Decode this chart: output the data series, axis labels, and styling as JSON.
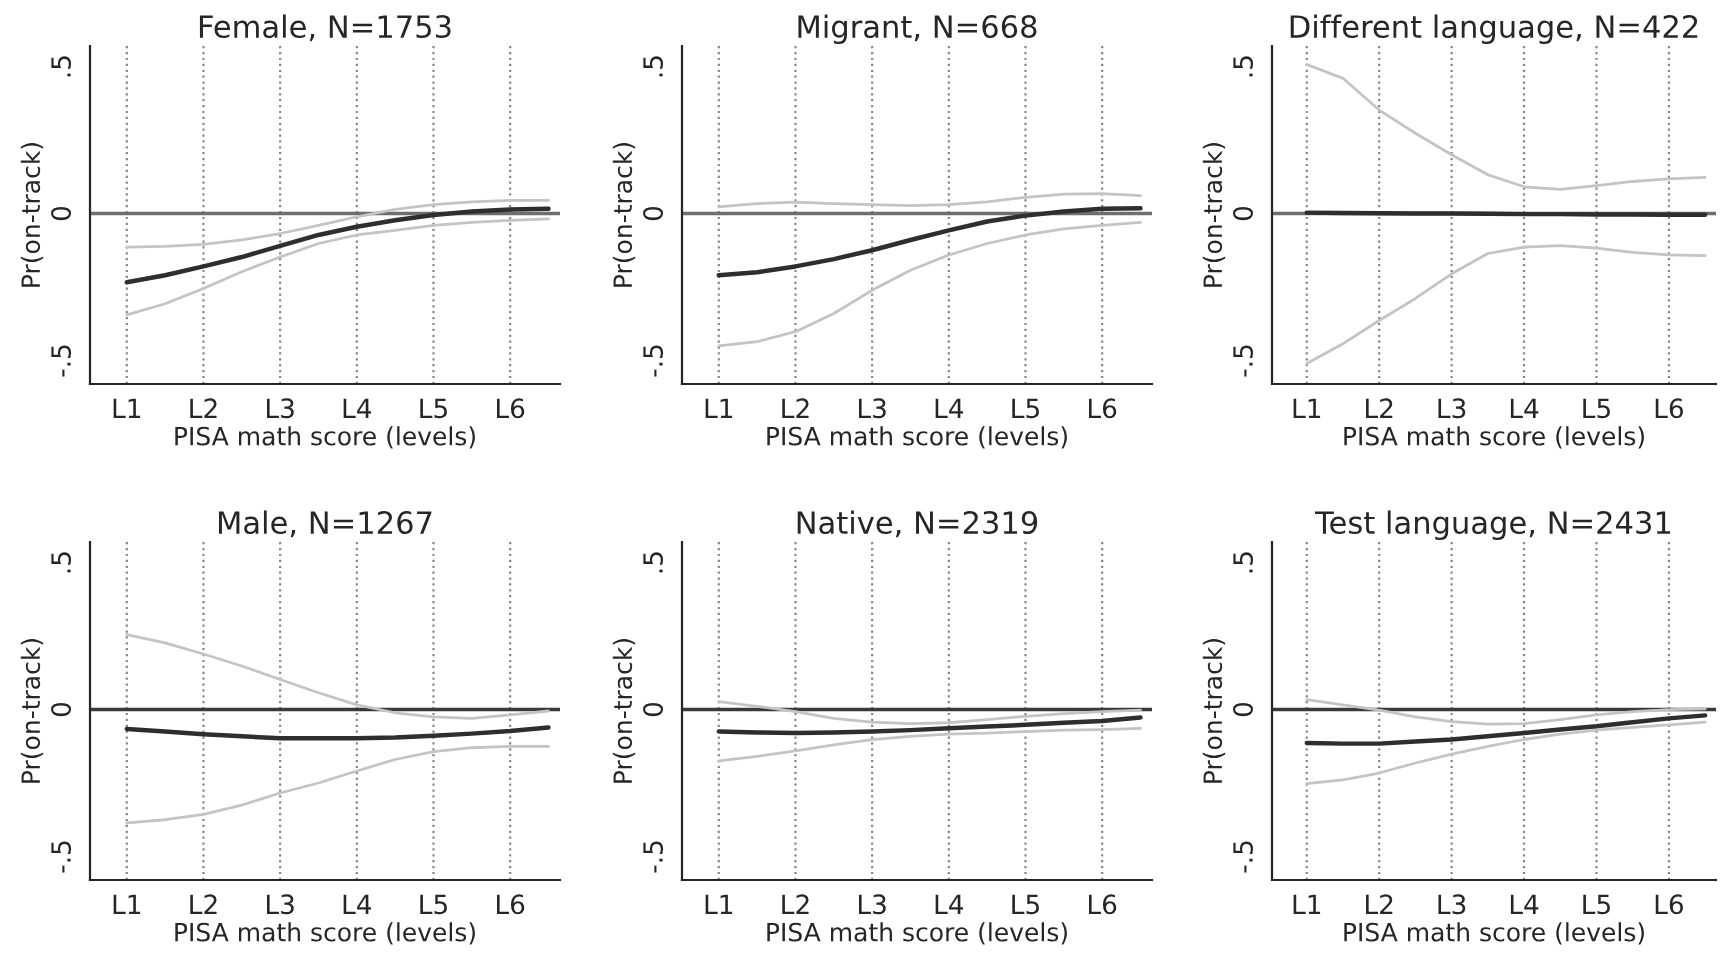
{
  "chart_data": [
    {
      "type": "line",
      "title": "Female, N=1753",
      "xlabel": "PISA math score (levels)",
      "ylabel": "Pr(on-track)",
      "categories": [
        "L1",
        null,
        "L2",
        null,
        "L3",
        null,
        "L4",
        null,
        "L5",
        null,
        "L6",
        null
      ],
      "ylim": [
        -0.58,
        0.57
      ],
      "yticks": [
        {
          "value": -0.5,
          "label": "-.5"
        },
        {
          "value": 0,
          "label": "0"
        },
        {
          "value": 0.5,
          "label": ".5"
        }
      ],
      "grid": "x",
      "ref_lines": [
        {
          "axis": "y",
          "value": 0,
          "color": "#6e6e6e"
        }
      ],
      "series": [
        {
          "color": "#c4c4c4",
          "values": [
            -0.114,
            -0.112,
            -0.105,
            -0.09,
            -0.068,
            -0.04,
            -0.011,
            0.014,
            0.03,
            0.04,
            0.045,
            0.045
          ]
        },
        {
          "color": "#c4c4c4",
          "values": [
            -0.345,
            -0.307,
            -0.255,
            -0.198,
            -0.148,
            -0.102,
            -0.073,
            -0.057,
            -0.04,
            -0.03,
            -0.023,
            -0.018
          ]
        },
        {
          "color": "#2e2e2e",
          "values": [
            -0.234,
            -0.21,
            -0.18,
            -0.148,
            -0.11,
            -0.073,
            -0.045,
            -0.023,
            -0.005,
            0.007,
            0.014,
            0.016
          ]
        }
      ]
    },
    {
      "type": "line",
      "title": "Migrant, N=668",
      "xlabel": "PISA math score (levels)",
      "ylabel": "Pr(on-track)",
      "categories": [
        "L1",
        null,
        "L2",
        null,
        "L3",
        null,
        "L4",
        null,
        "L5",
        null,
        "L6",
        null
      ],
      "ylim": [
        -0.58,
        0.57
      ],
      "yticks": [
        {
          "value": -0.5,
          "label": "-.5"
        },
        {
          "value": 0,
          "label": "0"
        },
        {
          "value": 0.5,
          "label": ".5"
        }
      ],
      "grid": "x",
      "ref_lines": [
        {
          "axis": "y",
          "value": 0,
          "color": "#6e6e6e"
        }
      ],
      "series": [
        {
          "color": "#c4c4c4",
          "values": [
            0.023,
            0.034,
            0.039,
            0.034,
            0.03,
            0.027,
            0.03,
            0.04,
            0.055,
            0.066,
            0.068,
            0.061
          ]
        },
        {
          "color": "#c4c4c4",
          "values": [
            -0.45,
            -0.436,
            -0.402,
            -0.34,
            -0.261,
            -0.193,
            -0.141,
            -0.102,
            -0.073,
            -0.052,
            -0.04,
            -0.03
          ]
        },
        {
          "color": "#2e2e2e",
          "values": [
            -0.21,
            -0.2,
            -0.18,
            -0.155,
            -0.125,
            -0.09,
            -0.057,
            -0.027,
            -0.007,
            0.007,
            0.016,
            0.018
          ]
        }
      ]
    },
    {
      "type": "line",
      "title": "Different language, N=422",
      "xlabel": "PISA math score (levels)",
      "ylabel": "Pr(on-track)",
      "categories": [
        "L1",
        null,
        "L2",
        null,
        "L3",
        null,
        "L4",
        null,
        "L5",
        null,
        "L6",
        null
      ],
      "ylim": [
        -0.58,
        0.57
      ],
      "yticks": [
        {
          "value": -0.5,
          "label": "-.5"
        },
        {
          "value": 0,
          "label": "0"
        },
        {
          "value": 0.5,
          "label": ".5"
        }
      ],
      "grid": "x",
      "ref_lines": [
        {
          "axis": "y",
          "value": 0,
          "color": "#6e6e6e"
        }
      ],
      "series": [
        {
          "color": "#c4c4c4",
          "values": [
            0.507,
            0.46,
            0.352,
            0.273,
            0.2,
            0.132,
            0.091,
            0.082,
            0.095,
            0.109,
            0.118,
            0.123
          ]
        },
        {
          "color": "#c4c4c4",
          "values": [
            -0.51,
            -0.443,
            -0.364,
            -0.289,
            -0.205,
            -0.136,
            -0.114,
            -0.109,
            -0.118,
            -0.132,
            -0.141,
            -0.143
          ]
        },
        {
          "color": "#2e2e2e",
          "values": [
            0.003,
            0.002,
            0.001,
            0,
            0,
            -0.001,
            -0.002,
            -0.002,
            -0.003,
            -0.003,
            -0.004,
            -0.004
          ]
        }
      ]
    },
    {
      "type": "line",
      "title": "Male, N=1267",
      "xlabel": "PISA math score (levels)",
      "ylabel": "Pr(on-track)",
      "categories": [
        "L1",
        null,
        "L2",
        null,
        "L3",
        null,
        "L4",
        null,
        "L5",
        null,
        "L6",
        null
      ],
      "ylim": [
        -0.58,
        0.57
      ],
      "yticks": [
        {
          "value": -0.5,
          "label": "-.5"
        },
        {
          "value": 0,
          "label": "0"
        },
        {
          "value": 0.5,
          "label": ".5"
        }
      ],
      "grid": "x",
      "ref_lines": [
        {
          "axis": "y",
          "value": 0,
          "color": "#3a3a3a"
        }
      ],
      "series": [
        {
          "color": "#c4c4c4",
          "values": [
            0.255,
            0.227,
            0.189,
            0.148,
            0.102,
            0.057,
            0.016,
            -0.011,
            -0.025,
            -0.03,
            -0.018,
            -0.005
          ]
        },
        {
          "color": "#c4c4c4",
          "values": [
            -0.386,
            -0.375,
            -0.357,
            -0.325,
            -0.284,
            -0.25,
            -0.209,
            -0.17,
            -0.143,
            -0.13,
            -0.125,
            -0.125
          ]
        },
        {
          "color": "#2e2e2e",
          "values": [
            -0.066,
            -0.075,
            -0.084,
            -0.091,
            -0.098,
            -0.098,
            -0.098,
            -0.095,
            -0.089,
            -0.082,
            -0.073,
            -0.061
          ]
        }
      ]
    },
    {
      "type": "line",
      "title": "Native, N=2319",
      "xlabel": "PISA math score (levels)",
      "ylabel": "Pr(on-track)",
      "categories": [
        "L1",
        null,
        "L2",
        null,
        "L3",
        null,
        "L4",
        null,
        "L5",
        null,
        "L6",
        null
      ],
      "ylim": [
        -0.58,
        0.57
      ],
      "yticks": [
        {
          "value": -0.5,
          "label": "-.5"
        },
        {
          "value": 0,
          "label": "0"
        },
        {
          "value": 0.5,
          "label": ".5"
        }
      ],
      "grid": "x",
      "ref_lines": [
        {
          "axis": "y",
          "value": 0,
          "color": "#3a3a3a"
        }
      ],
      "series": [
        {
          "color": "#c4c4c4",
          "values": [
            0.027,
            0.011,
            -0.007,
            -0.03,
            -0.043,
            -0.048,
            -0.045,
            -0.034,
            -0.023,
            -0.014,
            -0.007,
            -0.002
          ]
        },
        {
          "color": "#c4c4c4",
          "values": [
            -0.175,
            -0.159,
            -0.141,
            -0.12,
            -0.102,
            -0.091,
            -0.084,
            -0.08,
            -0.075,
            -0.07,
            -0.068,
            -0.064
          ]
        },
        {
          "color": "#2e2e2e",
          "values": [
            -0.075,
            -0.078,
            -0.08,
            -0.078,
            -0.075,
            -0.07,
            -0.064,
            -0.058,
            -0.052,
            -0.045,
            -0.039,
            -0.027
          ]
        }
      ]
    },
    {
      "type": "line",
      "title": "Test language, N=2431",
      "xlabel": "PISA math score (levels)",
      "ylabel": "Pr(on-track)",
      "categories": [
        "L1",
        null,
        "L2",
        null,
        "L3",
        null,
        "L4",
        null,
        "L5",
        null,
        "L6",
        null
      ],
      "ylim": [
        -0.58,
        0.57
      ],
      "yticks": [
        {
          "value": -0.5,
          "label": "-.5"
        },
        {
          "value": 0,
          "label": "0"
        },
        {
          "value": 0.5,
          "label": ".5"
        }
      ],
      "grid": "x",
      "ref_lines": [
        {
          "axis": "y",
          "value": 0,
          "color": "#3a3a3a"
        }
      ],
      "series": [
        {
          "color": "#c4c4c4",
          "values": [
            0.034,
            0.016,
            -0.002,
            -0.025,
            -0.041,
            -0.05,
            -0.048,
            -0.034,
            -0.018,
            -0.007,
            0,
            0.002
          ]
        },
        {
          "color": "#c4c4c4",
          "values": [
            -0.252,
            -0.239,
            -0.216,
            -0.182,
            -0.152,
            -0.125,
            -0.102,
            -0.084,
            -0.07,
            -0.061,
            -0.052,
            -0.043
          ]
        },
        {
          "color": "#2e2e2e",
          "values": [
            -0.114,
            -0.116,
            -0.116,
            -0.109,
            -0.102,
            -0.091,
            -0.08,
            -0.068,
            -0.057,
            -0.043,
            -0.03,
            -0.02
          ]
        }
      ]
    }
  ]
}
